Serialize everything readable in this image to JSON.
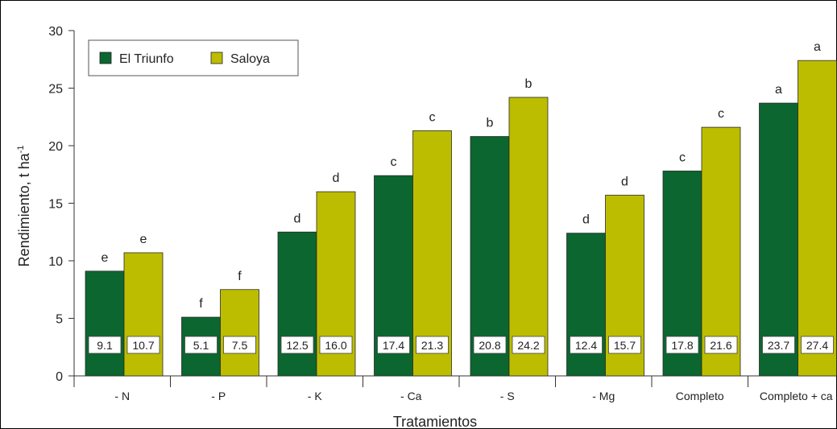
{
  "chart_data": {
    "type": "bar",
    "title": "",
    "xlabel": "Tratamientos",
    "ylabel_main": "Rendimiento, t ha",
    "ylabel_sup": "-1",
    "ylim": [
      0,
      30
    ],
    "yticks": [
      0,
      5,
      10,
      15,
      20,
      25,
      30
    ],
    "legend_position": "top-left",
    "categories": [
      "- N",
      "- P",
      "- K",
      "- Ca",
      "- S",
      "- Mg",
      "Completo",
      "Completo + ca"
    ],
    "series": [
      {
        "name": "El Triunfo",
        "color": "#0b6630",
        "values": [
          9.1,
          5.1,
          12.5,
          17.4,
          20.8,
          12.4,
          17.8,
          23.7
        ],
        "labels": [
          "9.1",
          "5.1",
          "12.5",
          "17.4",
          "20.8",
          "12.4",
          "17.8",
          "23.7"
        ],
        "letters": [
          "e",
          "f",
          "d",
          "c",
          "b",
          "d",
          "c",
          "a"
        ]
      },
      {
        "name": "Saloya",
        "color": "#bcbd00",
        "values": [
          10.7,
          7.5,
          16.0,
          21.3,
          24.2,
          15.7,
          21.6,
          27.4
        ],
        "labels": [
          "10.7",
          "7.5",
          "16.0",
          "21.3",
          "24.2",
          "15.7",
          "21.6",
          "27.4"
        ],
        "letters": [
          "e",
          "f",
          "d",
          "c",
          "b",
          "d",
          "c",
          "a"
        ]
      }
    ]
  }
}
